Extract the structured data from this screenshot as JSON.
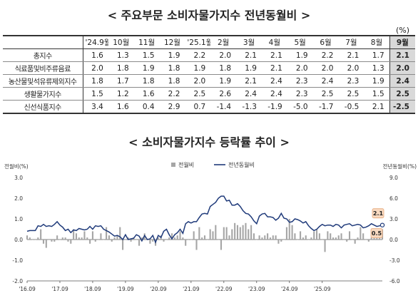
{
  "table": {
    "title": "< 주요부문 소비자물가지수 전년동월비 >",
    "unit": "(%)",
    "columns": [
      "'24.9월",
      "10월",
      "11월",
      "12월",
      "'25.1월",
      "2월",
      "3월",
      "4월",
      "5월",
      "6월",
      "7월",
      "8월",
      "9월"
    ],
    "rows": [
      {
        "label": "총지수",
        "values": [
          "1.6",
          "1.3",
          "1.5",
          "1.9",
          "2.2",
          "2.0",
          "2.1",
          "2.1",
          "1.9",
          "2.2",
          "2.1",
          "1.7",
          "2.1"
        ]
      },
      {
        "label": "식료품및비주류음료",
        "values": [
          "2.0",
          "1.8",
          "1.9",
          "1.8",
          "1.9",
          "1.8",
          "1.9",
          "2.1",
          "2.0",
          "2.0",
          "2.0",
          "1.3",
          "2.0"
        ]
      },
      {
        "label": "농산물및석유류제외지수",
        "values": [
          "1.8",
          "1.7",
          "1.8",
          "1.8",
          "2.0",
          "1.9",
          "2.1",
          "2.4",
          "2.3",
          "2.4",
          "2.3",
          "1.9",
          "2.4"
        ]
      },
      {
        "label": "생활물가지수",
        "values": [
          "1.5",
          "1.2",
          "1.6",
          "2.2",
          "2.5",
          "2.6",
          "2.4",
          "2.4",
          "2.3",
          "2.5",
          "2.5",
          "1.5",
          "2.5"
        ]
      },
      {
        "label": "신선식품지수",
        "values": [
          "3.4",
          "1.6",
          "0.4",
          "2.9",
          "0.7",
          "-1.4",
          "-1.3",
          "-1.9",
          "-5.0",
          "-1.7",
          "-0.5",
          "2.1",
          "-2.5"
        ]
      }
    ]
  },
  "chart_data": {
    "title": "< 소비자물가지수 등락률 추이 >",
    "type": "bar+line",
    "left_axis_label": "전월비(%)",
    "right_axis_label": "전년동월비(%)",
    "left_ticks": [
      "3.0",
      "2.0",
      "1.0",
      "0.0",
      "-1.0",
      "-2.0"
    ],
    "right_ticks": [
      "9.0",
      "6.0",
      "3.0",
      "0.0",
      "-3.0",
      "-6.0"
    ],
    "ylim_left": [
      -2.0,
      3.0
    ],
    "ylim_right": [
      -6.0,
      9.0
    ],
    "x_ticks": [
      "'16.09",
      "'17.09",
      "'18.09",
      "'19.09",
      "'20.09",
      "'21.09",
      "'22.09",
      "'23.09",
      "'24.09",
      "'25.09"
    ],
    "legend": [
      "전월비",
      "전년동월비"
    ],
    "colors": {
      "bar": "#a6a6a6",
      "line": "#1f3a7a",
      "callout_bg": "#f8d9c0",
      "callout_border": "#e6a87a"
    },
    "mom": [
      0.2,
      0.1,
      0.0,
      0.0,
      0.1,
      0.5,
      -0.2,
      -0.4,
      0.0,
      -0.1,
      -0.1,
      0.2,
      0.0,
      0.1,
      0.1,
      -0.1,
      -0.2,
      0.5,
      0.3,
      0.1,
      0.1,
      0.4,
      0.1,
      -0.2,
      0.4,
      -0.1,
      0.0,
      0.3,
      0.0,
      0.6,
      0.2,
      -0.1,
      0.1,
      0.2,
      0.6,
      -0.5,
      0.0,
      0.1,
      -0.1,
      0.1,
      0.0,
      -0.3,
      0.1,
      0.3,
      0.0,
      -0.2,
      -0.1,
      -0.3,
      0.1,
      0.2,
      -0.1,
      0.0,
      0.1,
      0.3,
      0.1,
      0.2,
      0.4,
      0.1,
      -0.3,
      0.0,
      0.0,
      0.4,
      -0.5,
      0.6,
      0.1,
      0.2,
      0.0,
      0.5,
      0.4,
      0.7,
      0.0,
      -0.5,
      0.6,
      0.6,
      0.2,
      0.5,
      0.8,
      0.7,
      0.6,
      0.7,
      0.8,
      0.5,
      0.7,
      0.3,
      0.0,
      0.2,
      0.1,
      0.2,
      0.3,
      0.1,
      0.2,
      0.2,
      -0.2,
      -0.1,
      0.0,
      0.6,
      1.0,
      0.7,
      0.3,
      0.0,
      0.4,
      0.1,
      0.2,
      0.0,
      0.1,
      0.4,
      0.5,
      0.3,
      0.0,
      -0.6,
      0.4,
      0.3,
      0.1,
      0.1,
      0.2,
      0.3,
      0.0,
      -0.1,
      0.4,
      0.0,
      -0.2,
      0.1,
      0.6,
      0.3,
      0.0,
      -0.1,
      0.1,
      0.1,
      0.2,
      0.1,
      0.5
    ],
    "yoy": [
      1.2,
      1.3,
      1.3,
      1.3,
      2.0,
      1.9,
      2.2,
      1.9,
      2.0,
      1.9,
      2.2,
      2.6,
      2.1,
      1.8,
      1.3,
      1.5,
      1.0,
      1.4,
      1.3,
      1.6,
      1.5,
      1.4,
      1.5,
      1.9,
      1.5,
      2.0,
      1.9,
      2.0,
      1.5,
      1.3,
      1.1,
      0.8,
      0.5,
      0.6,
      0.4,
      0.0,
      0.7,
      0.0,
      0.1,
      0.2,
      0.7,
      0.5,
      -0.2,
      0.6,
      0.0,
      0.1,
      0.6,
      -0.4,
      0.6,
      0.3,
      1.2,
      1.5,
      0.7,
      0.1,
      0.7,
      1.0,
      1.5,
      0.9,
      2.3,
      2.6,
      2.4,
      2.6,
      2.6,
      3.2,
      3.7,
      3.8,
      3.7,
      4.8,
      5.1,
      5.4,
      6.0,
      6.3,
      6.3,
      5.6,
      5.7,
      5.0,
      5.0,
      5.2,
      4.8,
      4.2,
      3.8,
      3.7,
      3.3,
      2.7,
      2.3,
      3.4,
      3.7,
      3.8,
      3.3,
      3.3,
      3.2,
      2.8,
      3.1,
      3.8,
      3.1,
      3.0,
      2.5,
      2.6,
      3.0,
      2.9,
      2.7,
      2.4,
      2.6,
      2.0,
      1.6,
      1.3,
      1.5,
      1.9,
      2.2,
      2.0,
      2.1,
      2.1,
      1.9,
      2.2,
      2.1,
      1.7,
      2.1,
      2.2,
      2.3,
      2.0,
      2.1,
      2.2,
      2.1,
      1.7,
      1.8,
      2.0,
      2.3,
      2.1,
      1.9,
      2.0,
      2.1
    ],
    "annotations": {
      "last_yoy": "2.1",
      "last_mom": "0.5"
    }
  }
}
